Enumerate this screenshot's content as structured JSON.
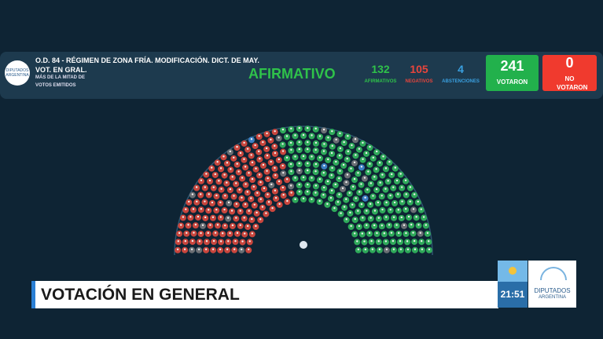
{
  "header": {
    "title": "O.D. 84 - RÉGIMEN DE ZONA FRÍA. MODIFICACIÓN. DICT. DE MAY.",
    "subtitle": "VOT. EN GRAL.",
    "majority": [
      "MÁS DE LA MITAD DE",
      "VOTOS EMITIDOS"
    ],
    "logo": [
      "DIPUTADOS",
      "ARGENTINA"
    ],
    "result": "AFIRMATIVO"
  },
  "tallies": [
    {
      "value": 132,
      "label": "AFIRMATIVOS"
    },
    {
      "value": 105,
      "label": "NEGATIVOS"
    },
    {
      "value": 4,
      "label": "ABSTENCIONES"
    },
    {
      "value": 241,
      "label": "VOTARON"
    },
    {
      "value": 0,
      "label": "NO VOTARON"
    }
  ],
  "banner": {
    "title": "VOTACIÓN EN GENERAL",
    "clock": "21:51",
    "logo": [
      "DIPUTADOS",
      "ARGENTINA"
    ]
  }
}
